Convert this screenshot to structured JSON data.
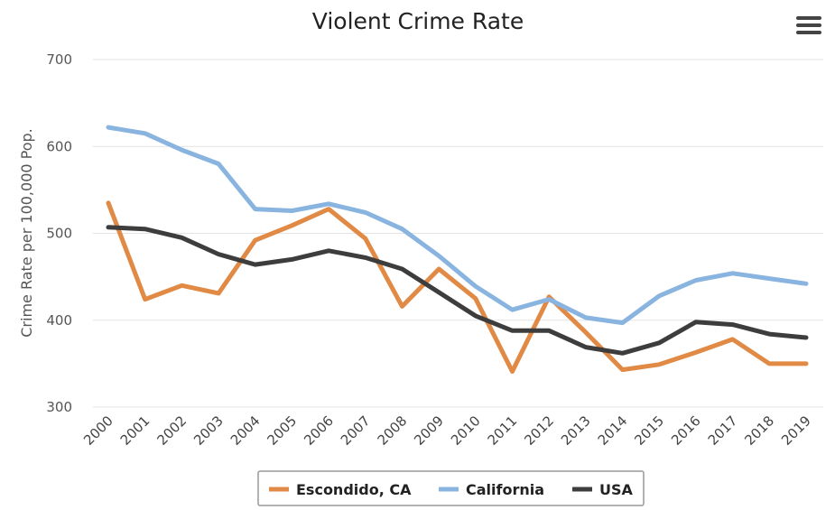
{
  "menu": {
    "icon": "hamburger-menu-icon"
  },
  "chart_data": {
    "type": "line",
    "title": "Violent Crime Rate",
    "xlabel": "",
    "ylabel": "Crime Rate per 100,000 Pop.",
    "ylim": [
      300,
      700
    ],
    "yticks": [
      300,
      400,
      500,
      600,
      700
    ],
    "grid": true,
    "legend_position": "bottom-center",
    "categories": [
      "2000",
      "2001",
      "2002",
      "2003",
      "2004",
      "2005",
      "2006",
      "2007",
      "2008",
      "2009",
      "2010",
      "2011",
      "2012",
      "2013",
      "2014",
      "2015",
      "2016",
      "2017",
      "2018",
      "2019"
    ],
    "series": [
      {
        "name": "Escondido, CA",
        "color": "#e08a45",
        "values": [
          535,
          424,
          440,
          431,
          492,
          509,
          528,
          494,
          416,
          459,
          425,
          341,
          427,
          386,
          343,
          349,
          363,
          378,
          350,
          350
        ]
      },
      {
        "name": "California",
        "color": "#8ab4e0",
        "values": [
          622,
          615,
          596,
          580,
          528,
          526,
          534,
          524,
          505,
          474,
          439,
          412,
          424,
          403,
          397,
          428,
          446,
          454,
          448,
          442
        ]
      },
      {
        "name": "USA",
        "color": "#3d3d3d",
        "values": [
          507,
          505,
          495,
          476,
          464,
          470,
          480,
          472,
          459,
          432,
          405,
          388,
          388,
          369,
          362,
          374,
          398,
          395,
          384,
          380
        ]
      }
    ]
  }
}
